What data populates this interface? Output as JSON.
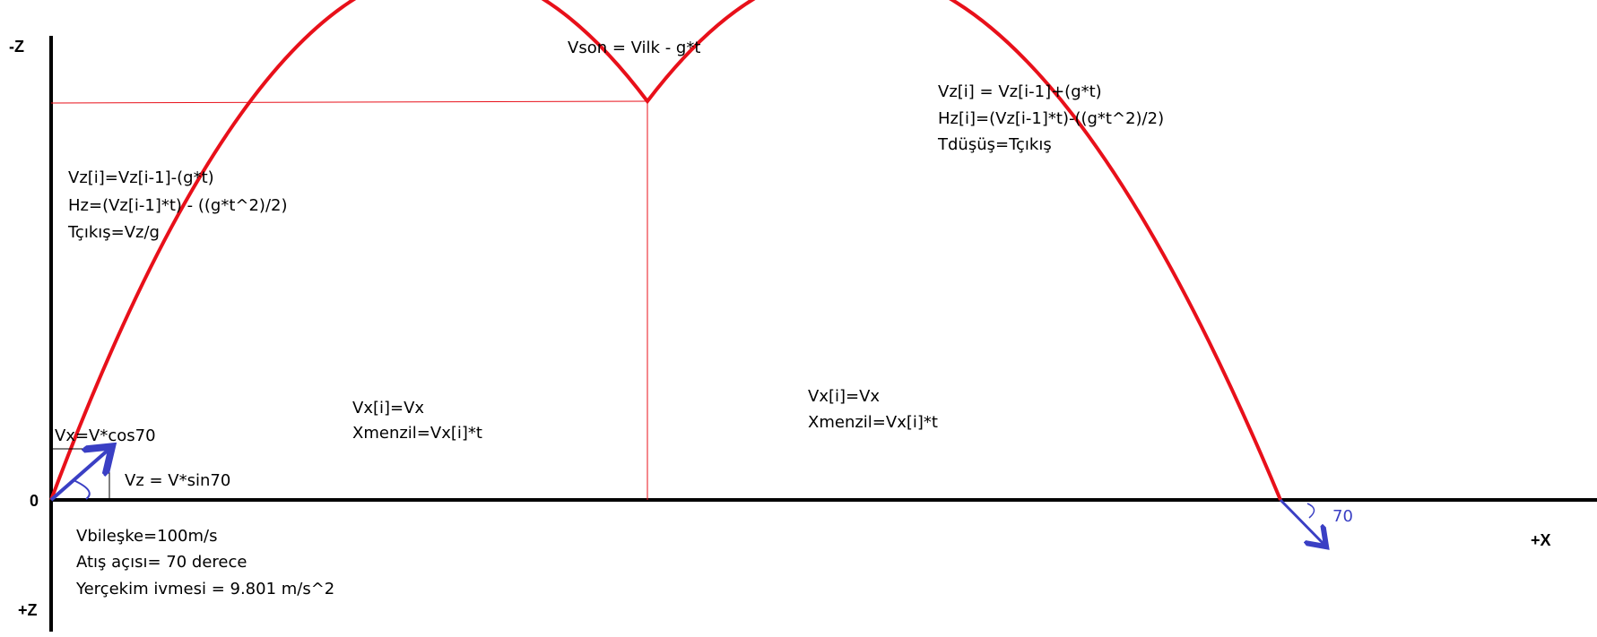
{
  "axes": {
    "minus_z": "-Z",
    "plus_z": "+Z",
    "origin": "0",
    "plus_x": "+X"
  },
  "peak": {
    "formula": "Vson = Vilk - g*t"
  },
  "ascent": {
    "lines": [
      "Vz[i]=Vz[i-1]-(g*t)",
      "Hz=(Vz[i-1]*t) -  ((g*t^2)/2)",
      "Tçıkış=Vz/g"
    ]
  },
  "descent": {
    "lines": [
      "Vz[i] = Vz[i-1]+(g*t)",
      "Hz[i]=(Vz[i-1]*t)-((g*t^2)/2)",
      "Tdüşüş=Tçıkış"
    ]
  },
  "horizontal_left": {
    "lines": [
      "Vx[i]=Vx",
      "Xmenzil=Vx[i]*t"
    ]
  },
  "horizontal_right": {
    "lines": [
      "Vx[i]=Vx",
      "Xmenzil=Vx[i]*t"
    ]
  },
  "components": {
    "vx": "Vx=V*cos70",
    "vz": "Vz = V*sin70"
  },
  "impact": {
    "angle": "70"
  },
  "params": {
    "lines": [
      "Vbileşke=100m/s",
      "Atış açısı= 70 derece",
      "Yerçekim ivmesi = 9.801 m/s^2"
    ]
  },
  "colors": {
    "trajectory": "#e8101a",
    "guide": "#e8101a",
    "vector": "#3a3fc4",
    "axis": "#000000"
  }
}
